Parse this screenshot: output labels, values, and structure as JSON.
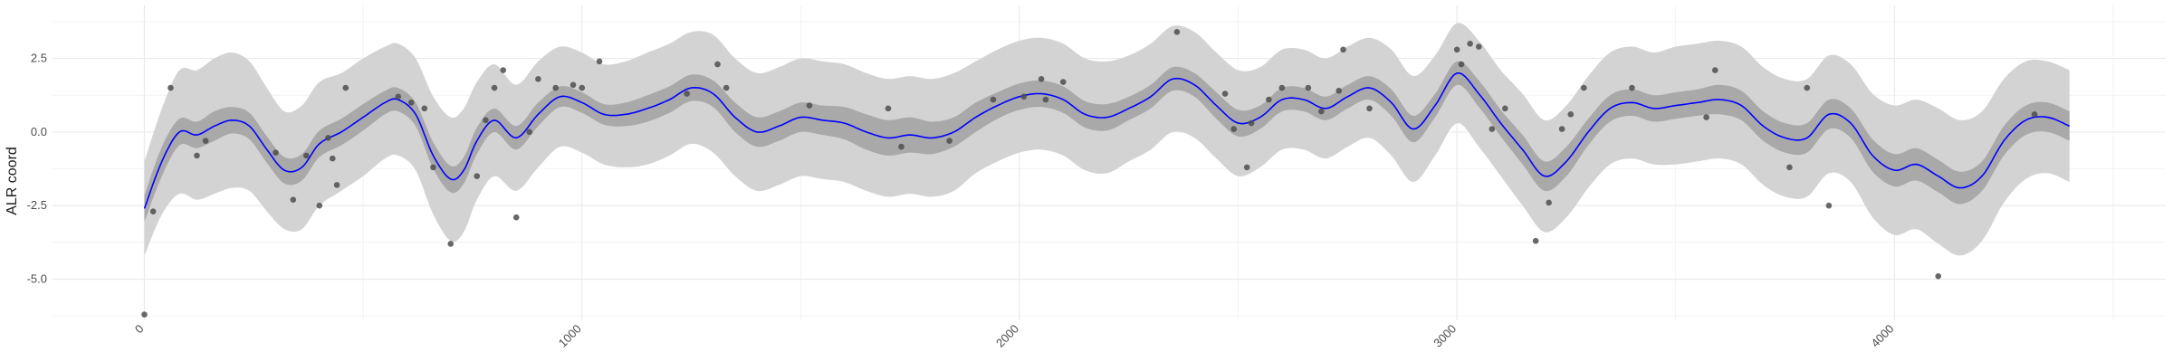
{
  "chart_data": {
    "type": "line",
    "title": "",
    "xlabel": "",
    "ylabel": "ALR coord",
    "xlim": [
      -210,
      4620
    ],
    "ylim": [
      -6.4,
      4.3
    ],
    "x_ticks": [
      0,
      1000,
      2000,
      3000,
      4000
    ],
    "y_ticks": [
      -5.0,
      -2.5,
      0.0,
      2.5
    ],
    "grid": true,
    "colors": {
      "line": "#0000ff",
      "inner_band": "#a9a9a9",
      "outer_band": "#d3d3d3",
      "points": "#4d4d4d",
      "grid": "#ebebeb"
    },
    "series": [
      {
        "type": "line",
        "x": [
          0,
          40,
          80,
          120,
          160,
          200,
          240,
          280,
          320,
          360,
          400,
          450,
          500,
          550,
          580,
          620,
          660,
          700,
          730,
          760,
          800,
          850,
          900,
          950,
          1000,
          1050,
          1100,
          1150,
          1200,
          1250,
          1300,
          1350,
          1400,
          1450,
          1500,
          1550,
          1600,
          1650,
          1700,
          1750,
          1800,
          1850,
          1900,
          1950,
          2000,
          2050,
          2100,
          2150,
          2200,
          2250,
          2300,
          2350,
          2400,
          2450,
          2500,
          2550,
          2600,
          2650,
          2700,
          2750,
          2800,
          2850,
          2900,
          2950,
          3000,
          3050,
          3100,
          3150,
          3200,
          3250,
          3300,
          3350,
          3400,
          3450,
          3500,
          3550,
          3600,
          3650,
          3700,
          3750,
          3800,
          3850,
          3900,
          3950,
          4000,
          4050,
          4100,
          4150,
          4200,
          4250,
          4300,
          4350,
          4400
        ],
        "y": [
          -2.6,
          -1.0,
          0.0,
          -0.1,
          0.2,
          0.4,
          0.2,
          -0.6,
          -1.3,
          -1.2,
          -0.4,
          0.0,
          0.5,
          1.0,
          1.1,
          0.6,
          -0.8,
          -1.6,
          -1.3,
          -0.3,
          0.4,
          -0.2,
          0.6,
          1.2,
          1.0,
          0.6,
          0.6,
          0.8,
          1.1,
          1.5,
          1.3,
          0.5,
          0.0,
          0.2,
          0.5,
          0.4,
          0.3,
          0.0,
          -0.2,
          -0.1,
          -0.2,
          0.0,
          0.5,
          0.9,
          1.2,
          1.3,
          1.1,
          0.6,
          0.5,
          0.8,
          1.2,
          1.8,
          1.6,
          0.9,
          0.3,
          0.5,
          1.1,
          1.1,
          0.8,
          1.2,
          1.5,
          1.0,
          0.1,
          0.9,
          2.0,
          1.3,
          0.3,
          -0.6,
          -1.5,
          -1.0,
          0.0,
          0.8,
          1.0,
          0.8,
          0.9,
          1.0,
          1.1,
          0.9,
          0.2,
          -0.2,
          -0.2,
          0.6,
          0.3,
          -0.8,
          -1.3,
          -1.1,
          -1.5,
          -1.9,
          -1.5,
          -0.3,
          0.4,
          0.5,
          0.2
        ]
      },
      {
        "type": "band",
        "half_width_inner": [
          0.45,
          0.5,
          0.45,
          0.45,
          0.5,
          0.45,
          0.45,
          0.45,
          0.45,
          0.45,
          0.45,
          0.45,
          0.45,
          0.4,
          0.4,
          0.4,
          0.45,
          0.45,
          0.45,
          0.45,
          0.4,
          0.4,
          0.4,
          0.35,
          0.35,
          0.35,
          0.4,
          0.45,
          0.45,
          0.45,
          0.45,
          0.5,
          0.5,
          0.5,
          0.5,
          0.5,
          0.55,
          0.6,
          0.6,
          0.6,
          0.55,
          0.5,
          0.5,
          0.45,
          0.45,
          0.45,
          0.45,
          0.45,
          0.45,
          0.4,
          0.4,
          0.4,
          0.4,
          0.45,
          0.45,
          0.4,
          0.4,
          0.4,
          0.4,
          0.4,
          0.4,
          0.45,
          0.45,
          0.4,
          0.4,
          0.45,
          0.45,
          0.5,
          0.5,
          0.5,
          0.45,
          0.45,
          0.45,
          0.45,
          0.45,
          0.45,
          0.5,
          0.5,
          0.5,
          0.5,
          0.5,
          0.5,
          0.5,
          0.55,
          0.55,
          0.55,
          0.55,
          0.55,
          0.5,
          0.5,
          0.5,
          0.5,
          0.5
        ],
        "half_width_outer": [
          1.6,
          1.8,
          2.1,
          2.2,
          2.3,
          2.3,
          2.2,
          2.1,
          2.0,
          2.1,
          2.1,
          2.0,
          2.0,
          1.9,
          1.9,
          1.9,
          2.0,
          2.1,
          2.1,
          2.0,
          1.9,
          1.8,
          1.8,
          1.7,
          1.7,
          1.7,
          1.8,
          1.9,
          1.9,
          1.9,
          2.0,
          2.0,
          2.0,
          2.0,
          2.0,
          2.0,
          2.0,
          2.0,
          2.0,
          2.0,
          2.0,
          2.0,
          1.9,
          1.9,
          1.9,
          1.9,
          1.9,
          1.9,
          1.9,
          1.8,
          1.8,
          1.8,
          1.8,
          1.8,
          1.8,
          1.7,
          1.7,
          1.7,
          1.7,
          1.7,
          1.7,
          1.8,
          1.8,
          1.7,
          1.7,
          1.8,
          1.8,
          1.9,
          1.9,
          1.9,
          1.9,
          1.9,
          1.9,
          1.9,
          2.0,
          2.0,
          2.0,
          2.0,
          2.0,
          2.0,
          2.0,
          2.0,
          2.0,
          2.1,
          2.2,
          2.2,
          2.3,
          2.3,
          2.2,
          2.1,
          2.0,
          1.9,
          1.9
        ]
      },
      {
        "type": "scatter",
        "points": [
          [
            0,
            -6.2
          ],
          [
            20,
            -2.7
          ],
          [
            60,
            1.5
          ],
          [
            120,
            -0.8
          ],
          [
            140,
            -0.3
          ],
          [
            300,
            -0.7
          ],
          [
            340,
            -2.3
          ],
          [
            370,
            -0.8
          ],
          [
            400,
            -2.5
          ],
          [
            420,
            -0.2
          ],
          [
            430,
            -0.9
          ],
          [
            440,
            -1.8
          ],
          [
            460,
            1.5
          ],
          [
            580,
            1.2
          ],
          [
            610,
            1.0
          ],
          [
            640,
            0.8
          ],
          [
            660,
            -1.2
          ],
          [
            700,
            -3.8
          ],
          [
            760,
            -1.5
          ],
          [
            780,
            0.4
          ],
          [
            800,
            1.5
          ],
          [
            820,
            2.1
          ],
          [
            850,
            -2.9
          ],
          [
            880,
            0.0
          ],
          [
            900,
            1.8
          ],
          [
            940,
            1.5
          ],
          [
            980,
            1.6
          ],
          [
            1000,
            1.5
          ],
          [
            1040,
            2.4
          ],
          [
            1240,
            1.3
          ],
          [
            1310,
            2.3
          ],
          [
            1330,
            1.5
          ],
          [
            1520,
            0.9
          ],
          [
            1700,
            0.8
          ],
          [
            1730,
            -0.5
          ],
          [
            1840,
            -0.3
          ],
          [
            1940,
            1.1
          ],
          [
            2010,
            1.2
          ],
          [
            2050,
            1.8
          ],
          [
            2060,
            1.1
          ],
          [
            2100,
            1.7
          ],
          [
            2360,
            3.4
          ],
          [
            2470,
            1.3
          ],
          [
            2490,
            0.1
          ],
          [
            2520,
            -1.2
          ],
          [
            2530,
            0.3
          ],
          [
            2570,
            1.1
          ],
          [
            2600,
            1.5
          ],
          [
            2660,
            1.5
          ],
          [
            2690,
            0.7
          ],
          [
            2730,
            1.4
          ],
          [
            2740,
            2.8
          ],
          [
            2800,
            0.8
          ],
          [
            3000,
            2.8
          ],
          [
            3010,
            2.3
          ],
          [
            3030,
            3.0
          ],
          [
            3050,
            2.9
          ],
          [
            3080,
            0.1
          ],
          [
            3110,
            0.8
          ],
          [
            3180,
            -3.7
          ],
          [
            3210,
            -2.4
          ],
          [
            3240,
            0.1
          ],
          [
            3260,
            0.6
          ],
          [
            3290,
            1.5
          ],
          [
            3400,
            1.5
          ],
          [
            3570,
            0.5
          ],
          [
            3590,
            2.1
          ],
          [
            3760,
            -1.2
          ],
          [
            3800,
            1.5
          ],
          [
            3850,
            -2.5
          ],
          [
            4100,
            -4.9
          ],
          [
            4320,
            0.6
          ]
        ]
      }
    ]
  }
}
